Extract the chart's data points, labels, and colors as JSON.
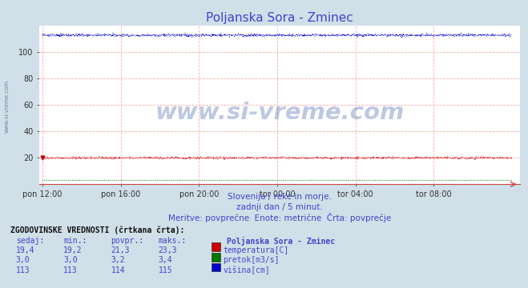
{
  "title": "Poljanska Sora - Zminec",
  "title_color": "#4444cc",
  "bg_color": "#d0dfe8",
  "plot_bg_color": "#ffffff",
  "grid_color": "#ffaaaa",
  "xlabel_ticks": [
    "pon 12:00",
    "pon 16:00",
    "pon 20:00",
    "tor 00:00",
    "tor 04:00",
    "tor 08:00"
  ],
  "tick_positions": [
    0,
    288,
    576,
    864,
    1152,
    1440
  ],
  "total_points": 1728,
  "ylim": [
    0,
    120
  ],
  "yticks": [
    20,
    40,
    60,
    80,
    100
  ],
  "temp_value": 20.0,
  "temp_color": "#cc0000",
  "pretok_value": 3.0,
  "pretok_color": "#007700",
  "visina_value": 113.0,
  "visina_color": "#0000cc",
  "watermark": "www.si-vreme.com",
  "watermark_color": "#4466aa",
  "watermark_alpha": 0.35,
  "sub1": "Slovenija / reke in morje.",
  "sub2": "zadnji dan / 5 minut.",
  "sub3": "Meritve: povprečne  Enote: metrične  Črta: povprečje",
  "sub_color": "#4444cc",
  "table_title": "ZGODOVINSKE VREDNOSTI (črtkana črta):",
  "col_headers": [
    "sedaj:",
    "min.:",
    "povpr.:",
    "maks.:"
  ],
  "row1": [
    "19,4",
    "19,2",
    "21,3",
    "23,3"
  ],
  "row2": [
    "3,0",
    "3,0",
    "3,2",
    "3,4"
  ],
  "row3": [
    "113",
    "113",
    "114",
    "115"
  ],
  "legend_labels": [
    "temperatura[C]",
    "pretok[m3/s]",
    "višina[cm]"
  ],
  "legend_colors": [
    "#cc0000",
    "#007700",
    "#0000cc"
  ],
  "station_label": "Poljanska Sora - Zminec",
  "left_label": "www.si-vreme.com",
  "left_label_color": "#6688aa"
}
